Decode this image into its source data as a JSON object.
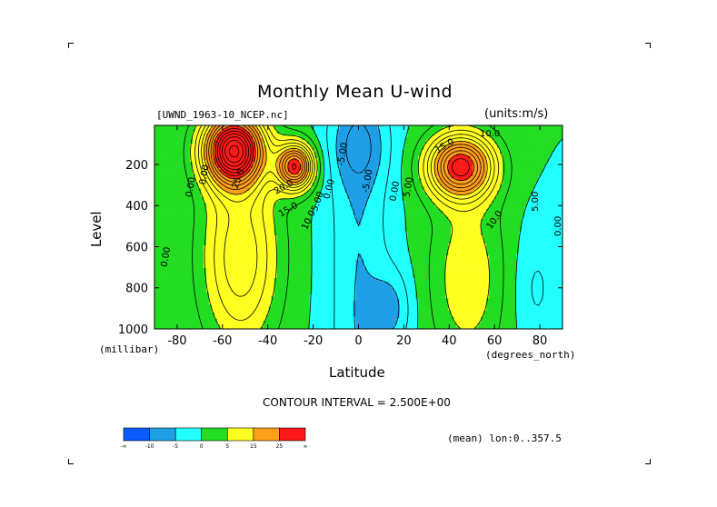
{
  "chart_data": {
    "type": "heatmap",
    "title": "Monthly Mean U-wind",
    "dataset_label": "[UWND_1963-10_NCEP.nc]",
    "units_label": "(units:m/s)",
    "xlabel": "Latitude",
    "ylabel": "Level",
    "x_units": "(degrees_north)",
    "y_units": "(millibar)",
    "xlim": [
      -90,
      90
    ],
    "ylim": [
      1000,
      10
    ],
    "x_ticks": [
      -80,
      -60,
      -40,
      -20,
      0,
      20,
      40,
      60,
      80
    ],
    "x_tick_labels": [
      "-80",
      "-60",
      "-40",
      "-20",
      "0",
      "20",
      "40",
      "60",
      "80"
    ],
    "y_ticks": [
      200,
      400,
      600,
      800,
      1000
    ],
    "y_tick_labels": [
      "200",
      "400",
      "600",
      "800",
      "1000"
    ],
    "contour_interval_text": "CONTOUR INTERVAL = 2.500E+00",
    "footnote": "(mean) lon:0..357.5",
    "colorbar": {
      "colors": [
        "#0a5cff",
        "#1f9fe6",
        "#22ffff",
        "#22dd22",
        "#ffff22",
        "#ff9f1a",
        "#ff1a1a"
      ],
      "labels": [
        "-∞",
        "-10",
        "-5",
        "0",
        "5",
        "15",
        "25",
        "∞"
      ]
    },
    "contour_labels": [
      {
        "text": "10.0",
        "lat": 58,
        "lev": 50,
        "rot": 0
      },
      {
        "text": "15.0",
        "lat": 38,
        "lev": 110,
        "rot": -30
      },
      {
        "text": "10.0",
        "lat": 60,
        "lev": 470,
        "rot": -55
      },
      {
        "text": "5.00",
        "lat": 78,
        "lev": 380,
        "rot": -90
      },
      {
        "text": "0.00",
        "lat": 88,
        "lev": 500,
        "rot": -90
      },
      {
        "text": "5.00",
        "lat": 22,
        "lev": 310,
        "rot": -80
      },
      {
        "text": "0.00",
        "lat": 16,
        "lev": 330,
        "rot": -80
      },
      {
        "text": "-5.00",
        "lat": 4,
        "lev": 280,
        "rot": -80
      },
      {
        "text": "-5.00",
        "lat": -7,
        "lev": 150,
        "rot": -80
      },
      {
        "text": "0.00",
        "lat": -13,
        "lev": 320,
        "rot": -75
      },
      {
        "text": "5.00",
        "lat": -18,
        "lev": 380,
        "rot": -70
      },
      {
        "text": "10.0",
        "lat": -22,
        "lev": 470,
        "rot": -65
      },
      {
        "text": "15.0",
        "lat": -31,
        "lev": 420,
        "rot": -30
      },
      {
        "text": "20.0",
        "lat": -33,
        "lev": 310,
        "rot": -30
      },
      {
        "text": "25.0",
        "lat": -53,
        "lev": 270,
        "rot": -70
      },
      {
        "text": "0.00",
        "lat": -68,
        "lev": 250,
        "rot": -80
      },
      {
        "text": "0.00",
        "lat": -74,
        "lev": 310,
        "rot": -80
      },
      {
        "text": "0.00",
        "lat": -85,
        "lev": 650,
        "rot": -80
      }
    ],
    "jet_cores": [
      {
        "lat": -55,
        "lev": 150,
        "value": 35
      },
      {
        "lat": -28,
        "lev": 220,
        "value": 27
      },
      {
        "lat": 45,
        "lev": 210,
        "value": 27
      }
    ]
  }
}
